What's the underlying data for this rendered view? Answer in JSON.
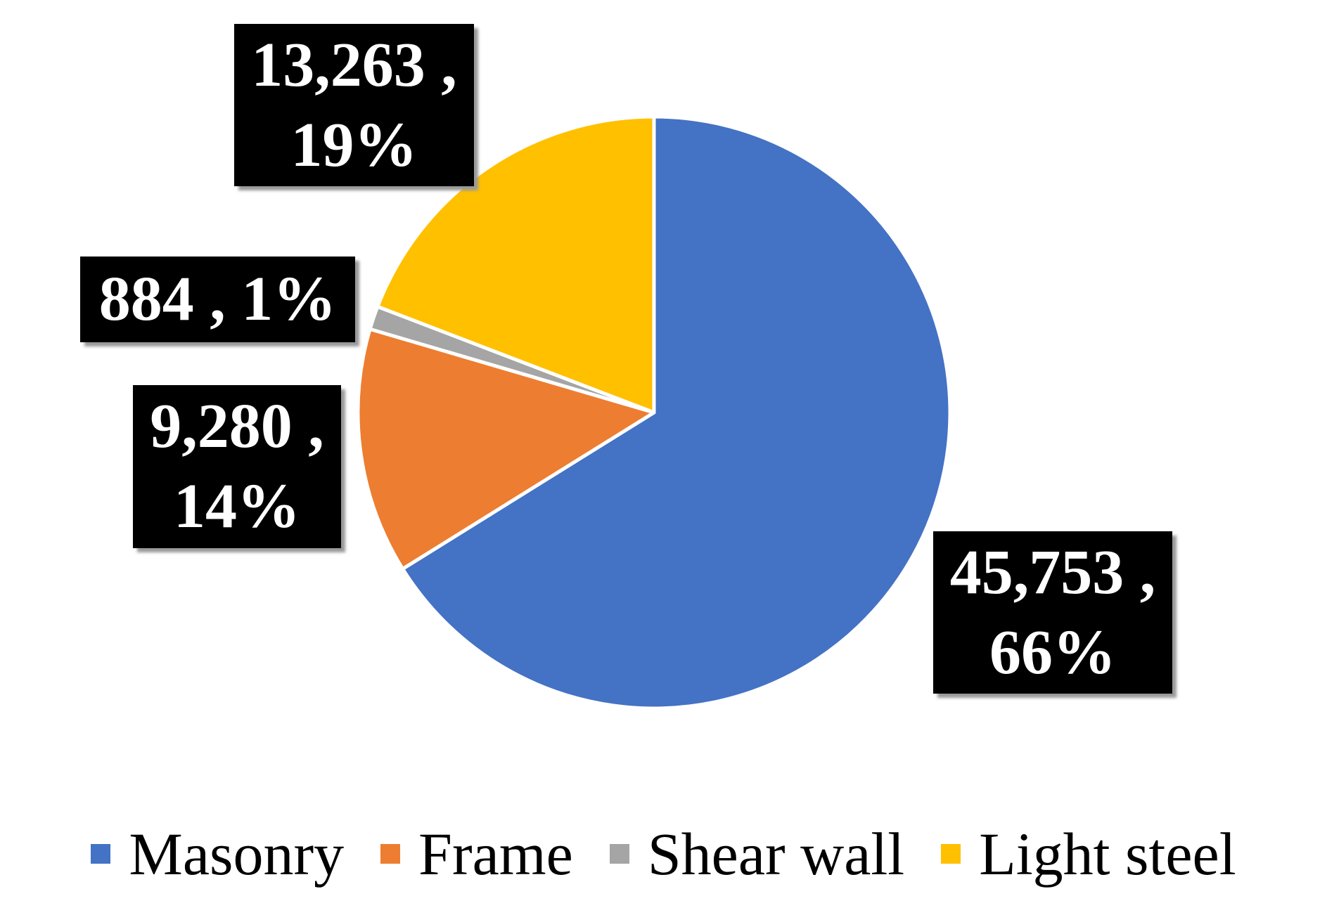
{
  "chart_data": {
    "type": "pie",
    "categories": [
      "Masonry",
      "Frame",
      "Shear wall",
      "Light steel"
    ],
    "values": [
      45753,
      9280,
      884,
      13263
    ],
    "value_labels": [
      "45,753 , 66%",
      "9,280 , 14%",
      "884 , 1%",
      "13,263 , 19%"
    ],
    "colors": [
      "#4472c4",
      "#ed7d31",
      "#a5a5a5",
      "#ffc000"
    ],
    "legend": "bottom"
  }
}
